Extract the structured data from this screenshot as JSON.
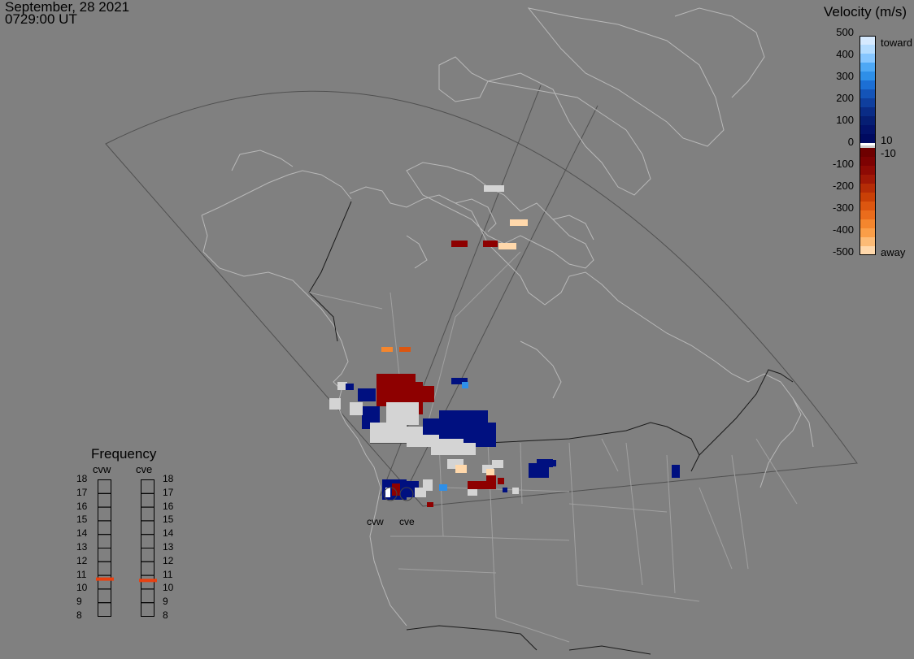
{
  "header": {
    "date": "September, 28 2021",
    "time": "0729:00 UT"
  },
  "velocity_scale": {
    "title": "Velocity (m/s)",
    "ticks": [
      "500",
      "400",
      "300",
      "200",
      "100",
      "0",
      "-100",
      "-200",
      "-300",
      "-400",
      "-500"
    ],
    "toward_label": "toward",
    "away_label": "away",
    "upper_threshold": "10",
    "lower_threshold": "-10",
    "toward_colors": [
      "#d6eaff",
      "#b4dcff",
      "#86c6ff",
      "#4ea8f5",
      "#2e8fe8",
      "#1c6fd4",
      "#1454b8",
      "#0f3f9e",
      "#0a2c86",
      "#061e73",
      "#03126a",
      "#000a60"
    ],
    "away_colors": [
      "#6e0000",
      "#7d0202",
      "#8e0a04",
      "#a01806",
      "#b52c06",
      "#c94006",
      "#dc5610",
      "#ea6c1c",
      "#f4862e",
      "#fa9e48",
      "#fcbb76",
      "#ffd8ab"
    ],
    "zero_colors": [
      "#ffffff",
      "#cfcfcf"
    ]
  },
  "frequency": {
    "title": "Frequency",
    "radars": [
      {
        "label": "cvw",
        "value": 10.7,
        "color": "#e84010"
      },
      {
        "label": "cve",
        "value": 10.6,
        "color": "#e84010"
      }
    ],
    "ticks": [
      "18",
      "17",
      "16",
      "15",
      "14",
      "13",
      "12",
      "11",
      "10",
      "9",
      "8"
    ]
  },
  "map": {
    "background_color": "#808080",
    "coast_color": "#b8b8b8",
    "border_color": "#1a1a1a",
    "fov_color": "#4a4a4a",
    "radar_labels": [
      "cvw",
      "cve"
    ],
    "scatter_legend": {
      "ground_scatter": "#d4d4d4",
      "toward": "#001080",
      "away": "#8e0000"
    }
  }
}
